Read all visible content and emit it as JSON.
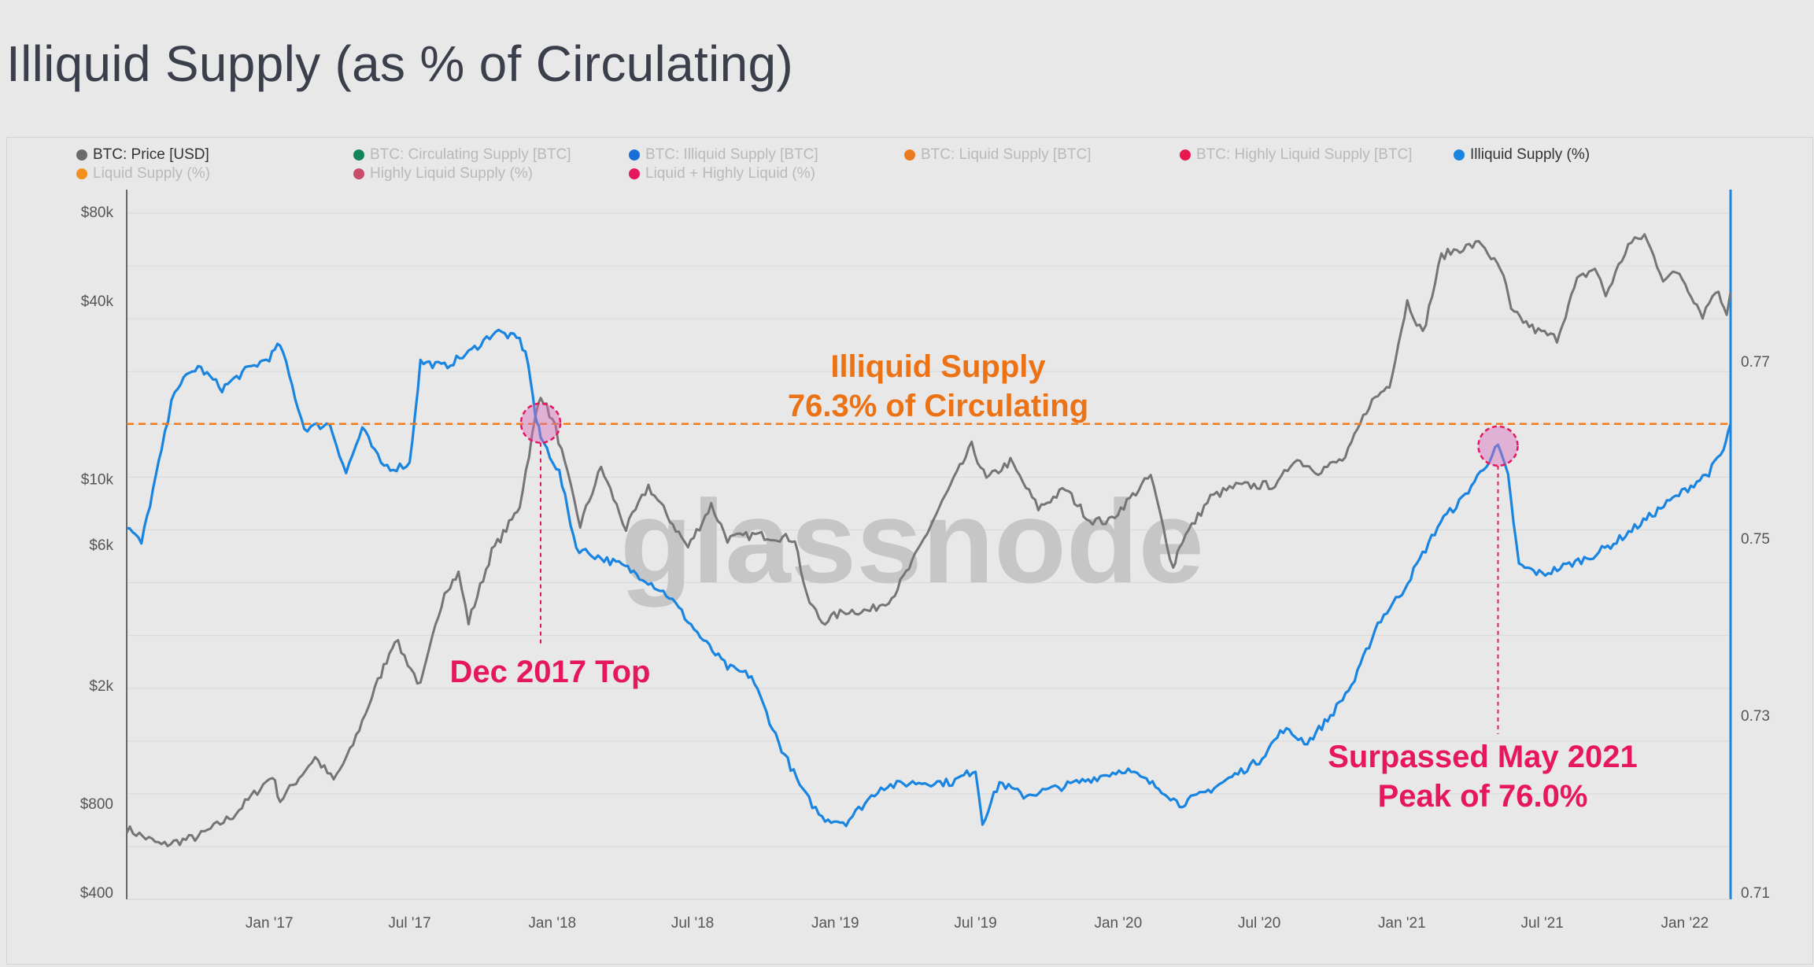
{
  "page": {
    "title": "Illiquid Supply (as % of Circulating)"
  },
  "watermark": "glassnode",
  "colors": {
    "price": "#757575",
    "illiquid_pct": "#1a85e0",
    "threshold": "#f07c1c",
    "annotation_red": "#e6175c",
    "annotation_orange": "#ec7216",
    "right_axis": "#1a85e0"
  },
  "legend": [
    {
      "label": "BTC: Price [USD]",
      "color": "#6b6b6b",
      "active": true
    },
    {
      "label": "BTC: Circulating Supply [BTC]",
      "color": "#16845a",
      "active": false
    },
    {
      "label": "BTC: Illiquid Supply [BTC]",
      "color": "#1a6fd6",
      "active": false
    },
    {
      "label": "BTC: Liquid Supply [BTC]",
      "color": "#ea7a1e",
      "active": false
    },
    {
      "label": "BTC: Highly Liquid Supply [BTC]",
      "color": "#e8184f",
      "active": false
    },
    {
      "label": "Illiquid Supply (%)",
      "color": "#1a85e0",
      "active": true
    },
    {
      "label": "Liquid Supply (%)",
      "color": "#f4901e",
      "active": false
    },
    {
      "label": "Highly Liquid Supply (%)",
      "color": "#c94d6b",
      "active": false
    },
    {
      "label": "Liquid + Highly Liquid (%)",
      "color": "#e5175f",
      "active": false
    }
  ],
  "annotations": {
    "threshold_line1": "Illiquid Supply",
    "threshold_line2": "76.3% of Circulating",
    "dec2017": "Dec 2017 Top",
    "may2021_line1": "Surpassed May 2021",
    "may2021_line2": "Peak of 76.0%"
  },
  "chart_data": {
    "type": "line",
    "title": "Illiquid Supply (as % of Circulating)",
    "x_range": [
      "2016-07-01",
      "2022-03-01"
    ],
    "x_ticks": [
      "Jan '17",
      "Jul '17",
      "Jan '18",
      "Jul '18",
      "Jan '19",
      "Jul '19",
      "Jan '20",
      "Jul '20",
      "Jan '21",
      "Jul '21",
      "Jan '22"
    ],
    "y_left": {
      "scale": "log",
      "range": [
        400,
        80000
      ],
      "ticks": [
        "$80k",
        "$40k",
        "$10k",
        "$6k",
        "$2k",
        "$800",
        "$400"
      ],
      "tick_values": [
        80000,
        40000,
        10000,
        6000,
        2000,
        800,
        400
      ]
    },
    "y_right": {
      "scale": "linear",
      "range": [
        0.71,
        0.7777
      ],
      "ticks": [
        "0.77",
        "0.75",
        "0.73",
        "0.71"
      ],
      "tick_values": [
        0.77,
        0.75,
        0.73,
        0.71
      ]
    },
    "threshold": {
      "label": "Illiquid Supply 76.3% of Circulating",
      "value": 0.763
    },
    "series": [
      {
        "name": "BTC: Price [USD]",
        "axis": "left",
        "color": "#757575",
        "x": [
          "2016-07-01",
          "2016-08-15",
          "2016-10-01",
          "2016-11-15",
          "2017-01-05",
          "2017-01-15",
          "2017-03-01",
          "2017-03-25",
          "2017-04-15",
          "2017-05-25",
          "2017-06-12",
          "2017-07-15",
          "2017-08-15",
          "2017-09-02",
          "2017-09-15",
          "2017-10-15",
          "2017-11-10",
          "2017-11-20",
          "2017-12-10",
          "2017-12-17",
          "2018-01-05",
          "2018-02-06",
          "2018-03-05",
          "2018-04-06",
          "2018-05-05",
          "2018-06-25",
          "2018-07-25",
          "2018-08-15",
          "2018-09-20",
          "2018-11-10",
          "2018-11-25",
          "2018-12-15",
          "2019-01-15",
          "2019-02-15",
          "2019-03-15",
          "2019-04-10",
          "2019-05-15",
          "2019-06-26",
          "2019-07-15",
          "2019-08-15",
          "2019-09-20",
          "2019-10-25",
          "2019-11-25",
          "2019-12-20",
          "2020-02-12",
          "2020-03-12",
          "2020-03-20",
          "2020-04-29",
          "2020-06-01",
          "2020-07-25",
          "2020-08-15",
          "2020-09-15",
          "2020-10-20",
          "2020-11-20",
          "2020-12-16",
          "2021-01-08",
          "2021-01-28",
          "2021-02-21",
          "2021-03-13",
          "2021-04-14",
          "2021-05-12",
          "2021-05-22",
          "2021-06-22",
          "2021-07-20",
          "2021-08-15",
          "2021-09-07",
          "2021-09-21",
          "2021-10-20",
          "2021-11-10",
          "2021-12-04",
          "2021-12-25",
          "2022-01-24",
          "2022-02-10",
          "2022-02-24",
          "2022-03-01"
        ],
        "y": [
          660,
          580,
          620,
          730,
          1000,
          820,
          1150,
          960,
          1200,
          2200,
          2900,
          2000,
          4200,
          4800,
          3300,
          5700,
          7300,
          8200,
          16000,
          19500,
          15000,
          7000,
          11000,
          6800,
          9500,
          5900,
          8200,
          6300,
          6500,
          6300,
          4000,
          3300,
          3600,
          3600,
          4000,
          5200,
          8000,
          13000,
          10000,
          11500,
          8000,
          9300,
          7300,
          7200,
          10300,
          5000,
          6000,
          8700,
          9500,
          9600,
          11800,
          10700,
          11800,
          18000,
          21000,
          40000,
          31000,
          57000,
          60000,
          63000,
          49000,
          37000,
          32000,
          30000,
          47000,
          52000,
          42000,
          62000,
          67000,
          48000,
          50000,
          36000,
          44000,
          37000,
          43000
        ]
      },
      {
        "name": "Illiquid Supply (%)",
        "axis": "right",
        "color": "#1a85e0",
        "x": [
          "2016-07-01",
          "2016-07-20",
          "2016-08-15",
          "2016-09-01",
          "2016-10-01",
          "2016-11-01",
          "2016-12-01",
          "2017-01-01",
          "2017-01-15",
          "2017-02-15",
          "2017-03-20",
          "2017-04-10",
          "2017-05-01",
          "2017-05-25",
          "2017-06-10",
          "2017-07-01",
          "2017-07-15",
          "2017-08-15",
          "2017-09-15",
          "2017-10-20",
          "2017-11-20",
          "2017-12-01",
          "2017-12-10",
          "2017-12-17",
          "2018-01-10",
          "2018-02-01",
          "2018-03-01",
          "2018-04-01",
          "2018-05-01",
          "2018-06-01",
          "2018-07-15",
          "2018-08-15",
          "2018-09-15",
          "2018-10-20",
          "2018-11-20",
          "2018-12-15",
          "2019-01-15",
          "2019-03-01",
          "2019-04-15",
          "2019-06-01",
          "2019-07-01",
          "2019-07-10",
          "2019-08-01",
          "2019-09-01",
          "2019-10-20",
          "2019-12-01",
          "2020-01-10",
          "2020-03-01",
          "2020-03-20",
          "2020-04-15",
          "2020-05-15",
          "2020-07-01",
          "2020-08-01",
          "2020-09-01",
          "2020-10-01",
          "2020-11-01",
          "2020-12-01",
          "2021-01-01",
          "2021-01-20",
          "2021-02-20",
          "2021-03-20",
          "2021-04-20",
          "2021-05-05",
          "2021-05-18",
          "2021-06-01",
          "2021-07-01",
          "2021-08-01",
          "2021-09-01",
          "2021-10-01",
          "2021-11-01",
          "2021-12-01",
          "2022-01-01",
          "2022-02-01",
          "2022-02-20",
          "2022-03-01"
        ],
        "y": [
          0.7515,
          0.7495,
          0.76,
          0.767,
          0.7695,
          0.767,
          0.769,
          0.7705,
          0.772,
          0.7625,
          0.763,
          0.7575,
          0.7625,
          0.7585,
          0.758,
          0.7585,
          0.77,
          0.7695,
          0.771,
          0.7735,
          0.7725,
          0.77,
          0.764,
          0.7615,
          0.7575,
          0.749,
          0.748,
          0.747,
          0.7455,
          0.7435,
          0.7385,
          0.7355,
          0.7345,
          0.727,
          0.7215,
          0.7185,
          0.718,
          0.722,
          0.7225,
          0.7225,
          0.724,
          0.718,
          0.7225,
          0.721,
          0.722,
          0.723,
          0.724,
          0.7215,
          0.72,
          0.721,
          0.7225,
          0.725,
          0.7285,
          0.727,
          0.73,
          0.734,
          0.7405,
          0.744,
          0.747,
          0.752,
          0.7545,
          0.7585,
          0.7605,
          0.757,
          0.747,
          0.746,
          0.747,
          0.748,
          0.7495,
          0.7515,
          0.7535,
          0.7555,
          0.7575,
          0.76,
          0.763
        ]
      }
    ]
  }
}
